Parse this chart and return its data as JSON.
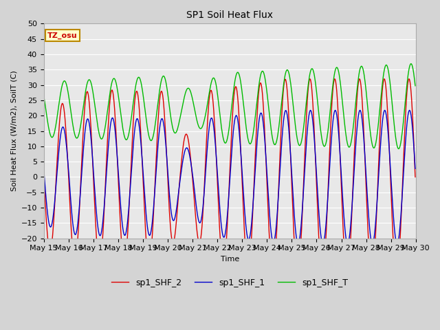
{
  "title": "SP1 Soil Heat Flux",
  "xlabel": "Time",
  "ylabel": "Soil Heat Flux (W/m2), SoilT (C)",
  "ylim": [
    -20,
    50
  ],
  "line_colors": {
    "sp1_SHF_2": "#dd0000",
    "sp1_SHF_1": "#0000cc",
    "sp1_SHF_T": "#00bb00"
  },
  "ytick_values": [
    -20,
    -15,
    -10,
    -5,
    0,
    5,
    10,
    15,
    20,
    25,
    30,
    35,
    40,
    45,
    50
  ],
  "plot_bg": "#e8e8e8",
  "fig_bg": "#d4d4d4",
  "font_size": 8,
  "title_font_size": 10,
  "annotation_text": "TZ_osu",
  "annotation_fg": "#cc0000",
  "annotation_bg": "#ffffcc",
  "annotation_border": "#bb8800"
}
